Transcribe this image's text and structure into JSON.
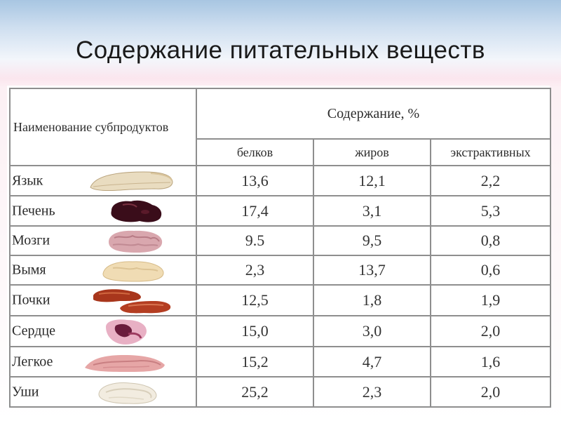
{
  "title": "Содержание питательных веществ",
  "table": {
    "name_header": "Наименование субпродуктов",
    "content_header": "Содержание, %",
    "columns": [
      "белков",
      "жиров",
      "экстрактивных"
    ],
    "rows": [
      {
        "name": "Язык",
        "values": [
          "13,6",
          "12,1",
          "2,2"
        ],
        "image": "tongue-image"
      },
      {
        "name": "Печень",
        "values": [
          "17,4",
          "3,1",
          "5,3"
        ],
        "image": "liver-image"
      },
      {
        "name": "Мозги",
        "values": [
          "9.5",
          "9,5",
          "0,8"
        ],
        "image": "brain-image"
      },
      {
        "name": "Вымя",
        "values": [
          "2,3",
          "13,7",
          "0,6"
        ],
        "image": "udder-image"
      },
      {
        "name": "Почки",
        "values": [
          "12,5",
          "1,8",
          "1,9"
        ],
        "image": "kidneys-image"
      },
      {
        "name": "Сердце",
        "values": [
          "15,0",
          "3,0",
          "2,0"
        ],
        "image": "heart-image"
      },
      {
        "name": "Легкое",
        "values": [
          "15,2",
          "4,7",
          "1,6"
        ],
        "image": "lung-image"
      },
      {
        "name": "Уши",
        "values": [
          "25,2",
          "2,3",
          "2,0"
        ],
        "image": "ears-image"
      }
    ]
  }
}
